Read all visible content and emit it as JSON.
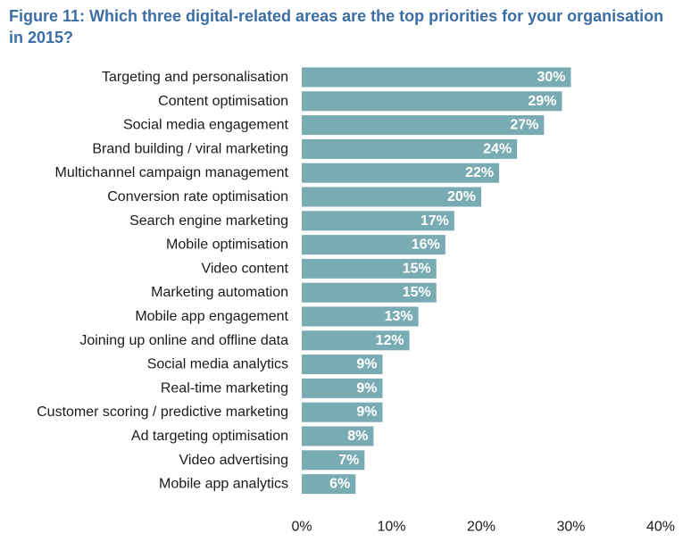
{
  "chart_data": {
    "type": "bar",
    "orientation": "horizontal",
    "title": "Figure 11: Which three digital-related areas are the top priorities for your organisation in 2015?",
    "categories": [
      "Targeting and personalisation",
      "Content optimisation",
      "Social media engagement",
      "Brand building / viral marketing",
      "Multichannel campaign management",
      "Conversion rate optimisation",
      "Search engine marketing",
      "Mobile optimisation",
      "Video content",
      "Marketing automation",
      "Mobile app engagement",
      "Joining up online and offline data",
      "Social media analytics",
      "Real-time marketing",
      "Customer scoring / predictive marketing",
      "Ad targeting optimisation",
      "Video advertising",
      "Mobile app analytics"
    ],
    "values": [
      30,
      29,
      27,
      24,
      22,
      20,
      17,
      16,
      15,
      15,
      13,
      12,
      9,
      9,
      9,
      8,
      7,
      6
    ],
    "data_labels": [
      "30%",
      "29%",
      "27%",
      "24%",
      "22%",
      "20%",
      "17%",
      "16%",
      "15%",
      "15%",
      "13%",
      "12%",
      "9%",
      "9%",
      "9%",
      "8%",
      "7%",
      "6%"
    ],
    "xlim": [
      0,
      40
    ],
    "x_ticks": [
      0,
      10,
      20,
      30,
      40
    ],
    "x_tick_labels": [
      "0%",
      "10%",
      "20%",
      "30%",
      "40%"
    ],
    "grid": false,
    "legend": "none",
    "colors": {
      "bar": "#79abb2",
      "title": "#3b6ea5",
      "text": "#1a1a1a",
      "bar_label": "#ffffff"
    }
  }
}
